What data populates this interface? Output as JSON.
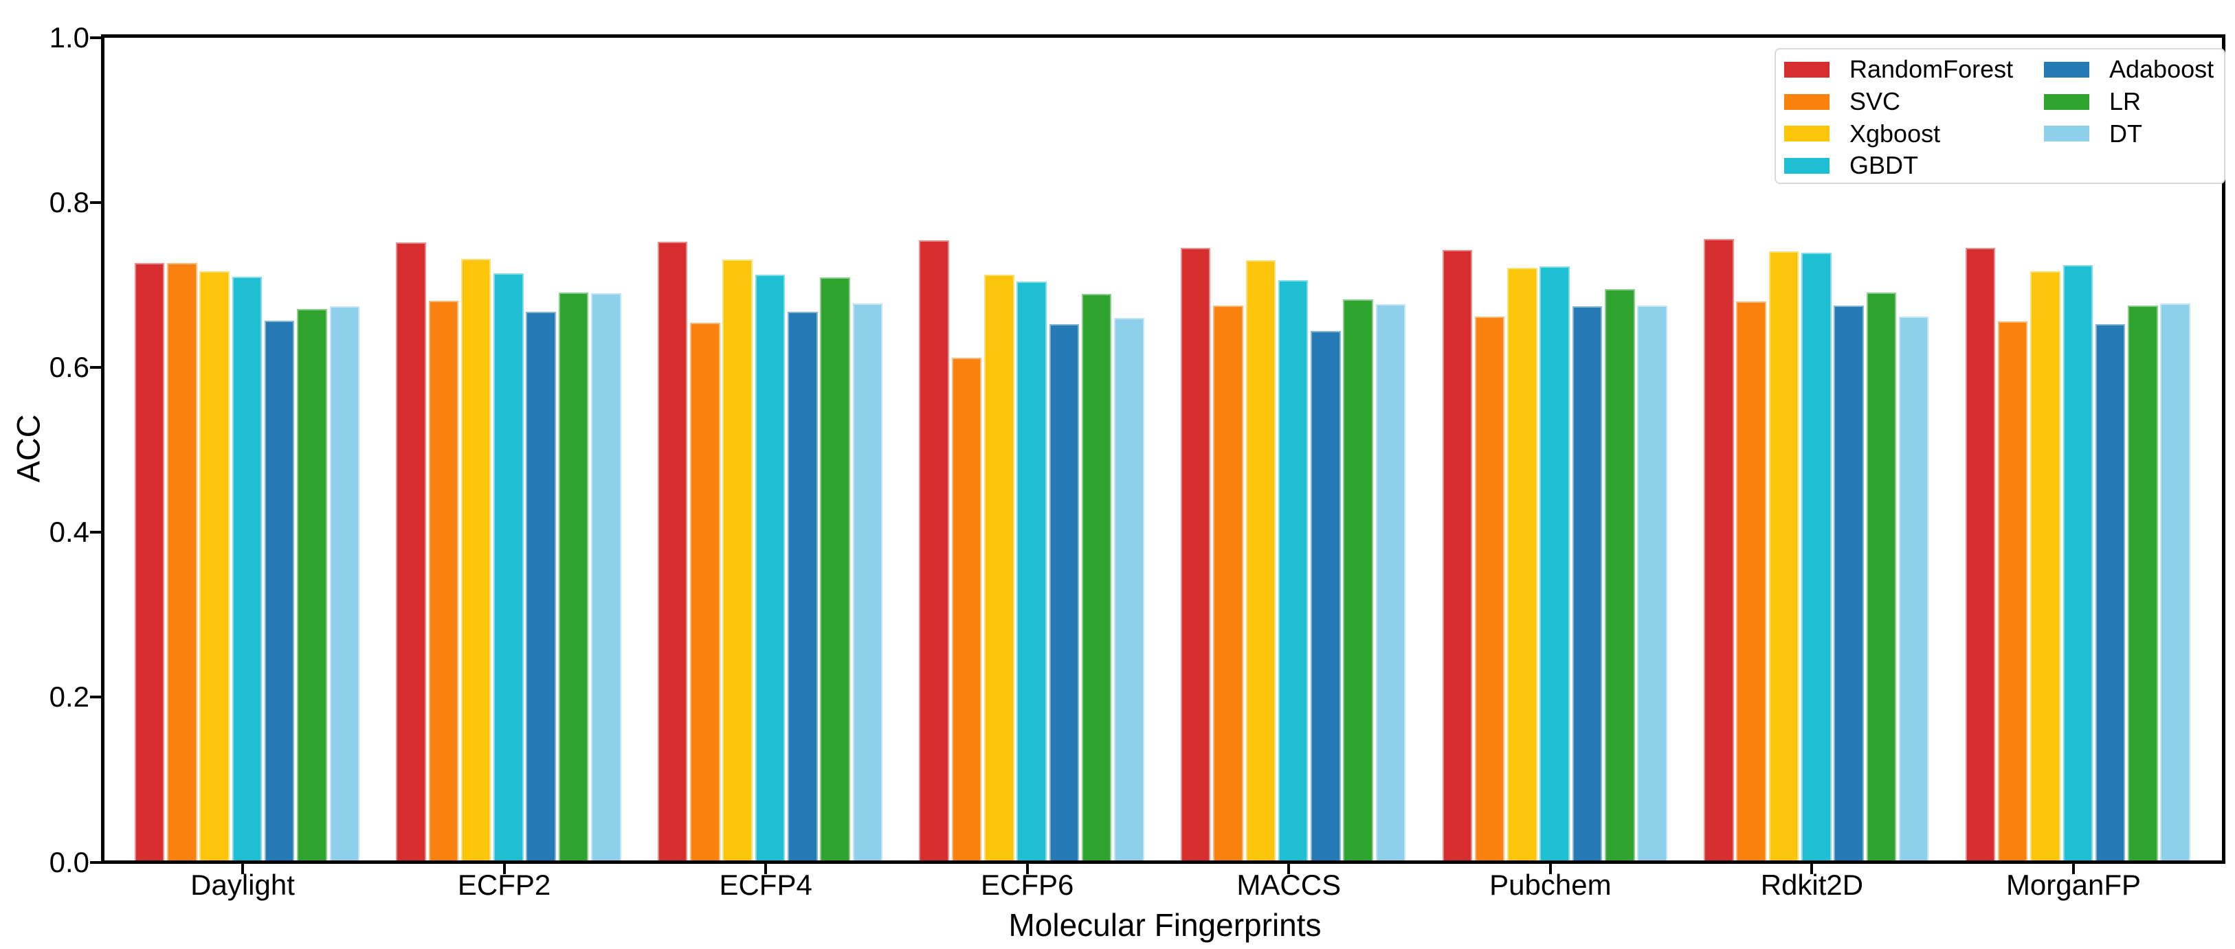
{
  "figure": {
    "background": "#ffffff",
    "axis_color": "#000000",
    "legend_border_color": "#d9d9d9"
  },
  "chart_data": {
    "type": "bar",
    "title": "",
    "xlabel": "Molecular Fingerprints",
    "ylabel": "ACC",
    "ylim": [
      0.0,
      1.0
    ],
    "ytick_labels": [
      "0.0",
      "0.2",
      "0.4",
      "0.6",
      "0.8",
      "1.0"
    ],
    "grid": false,
    "legend_position": "upper-right",
    "legend_columns": 2,
    "categories": [
      "Daylight",
      "ECFP2",
      "ECFP4",
      "ECFP6",
      "MACCS",
      "Pubchem",
      "Rdkit2D",
      "MorganFP"
    ],
    "series": [
      {
        "name": "RandomForest",
        "color": "#d62e2e",
        "values": [
          0.727,
          0.752,
          0.753,
          0.754,
          0.745,
          0.743,
          0.756,
          0.745
        ]
      },
      {
        "name": "SVC",
        "color": "#fb810e",
        "values": [
          0.727,
          0.681,
          0.654,
          0.612,
          0.675,
          0.662,
          0.68,
          0.656
        ]
      },
      {
        "name": "Xgboost",
        "color": "#fdc50a",
        "values": [
          0.717,
          0.732,
          0.731,
          0.713,
          0.73,
          0.721,
          0.741,
          0.717
        ]
      },
      {
        "name": "GBDT",
        "color": "#1fbfd3",
        "values": [
          0.71,
          0.714,
          0.713,
          0.704,
          0.706,
          0.723,
          0.739,
          0.724
        ]
      },
      {
        "name": "Adaboost",
        "color": "#2579b5",
        "values": [
          0.657,
          0.668,
          0.668,
          0.653,
          0.644,
          0.674,
          0.675,
          0.653
        ]
      },
      {
        "name": "LR",
        "color": "#2ea32e",
        "values": [
          0.671,
          0.691,
          0.709,
          0.689,
          0.683,
          0.695,
          0.691,
          0.675
        ]
      },
      {
        "name": "DT",
        "color": "#8ed0ec",
        "values": [
          0.674,
          0.69,
          0.678,
          0.66,
          0.677,
          0.675,
          0.662,
          0.678
        ]
      }
    ]
  }
}
